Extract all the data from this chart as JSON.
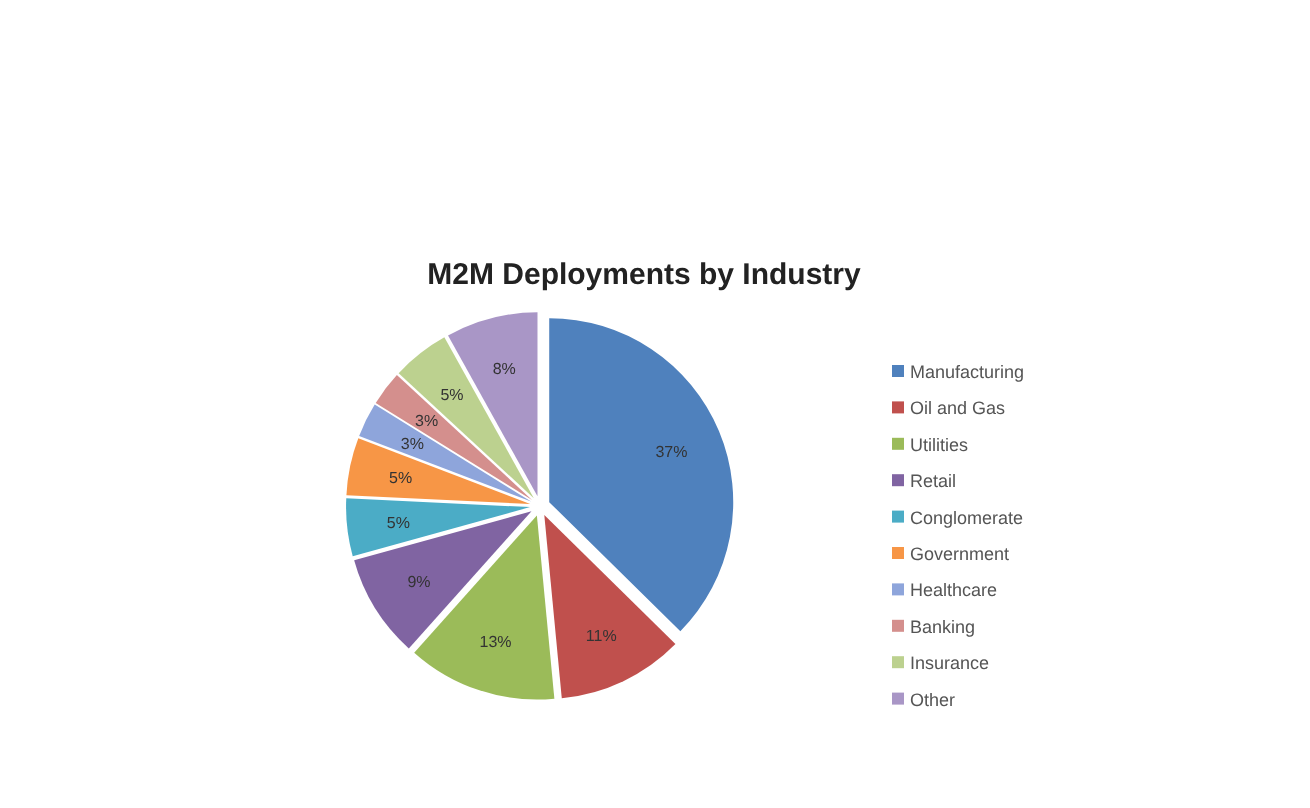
{
  "chart_data": {
    "type": "pie",
    "title": "M2M Deployments by Industry",
    "categories": [
      "Manufacturing",
      "Oil and Gas",
      "Utilities",
      "Retail",
      "Conglomerate",
      "Government",
      "Healthcare",
      "Banking",
      "Insurance",
      "Other"
    ],
    "values": [
      37,
      11,
      13,
      9,
      5,
      5,
      3,
      3,
      5,
      8
    ],
    "value_labels": [
      "37%",
      "11%",
      "13%",
      "9%",
      "5%",
      "5%",
      "3%",
      "3%",
      "5%",
      "8%"
    ],
    "colors": [
      "#4f81bd",
      "#c0504d",
      "#9bbb59",
      "#8064a2",
      "#4bacc6",
      "#f79646",
      "#8ea5db",
      "#d48f8d",
      "#bcd18f",
      "#a996c6"
    ],
    "legend": "right"
  }
}
